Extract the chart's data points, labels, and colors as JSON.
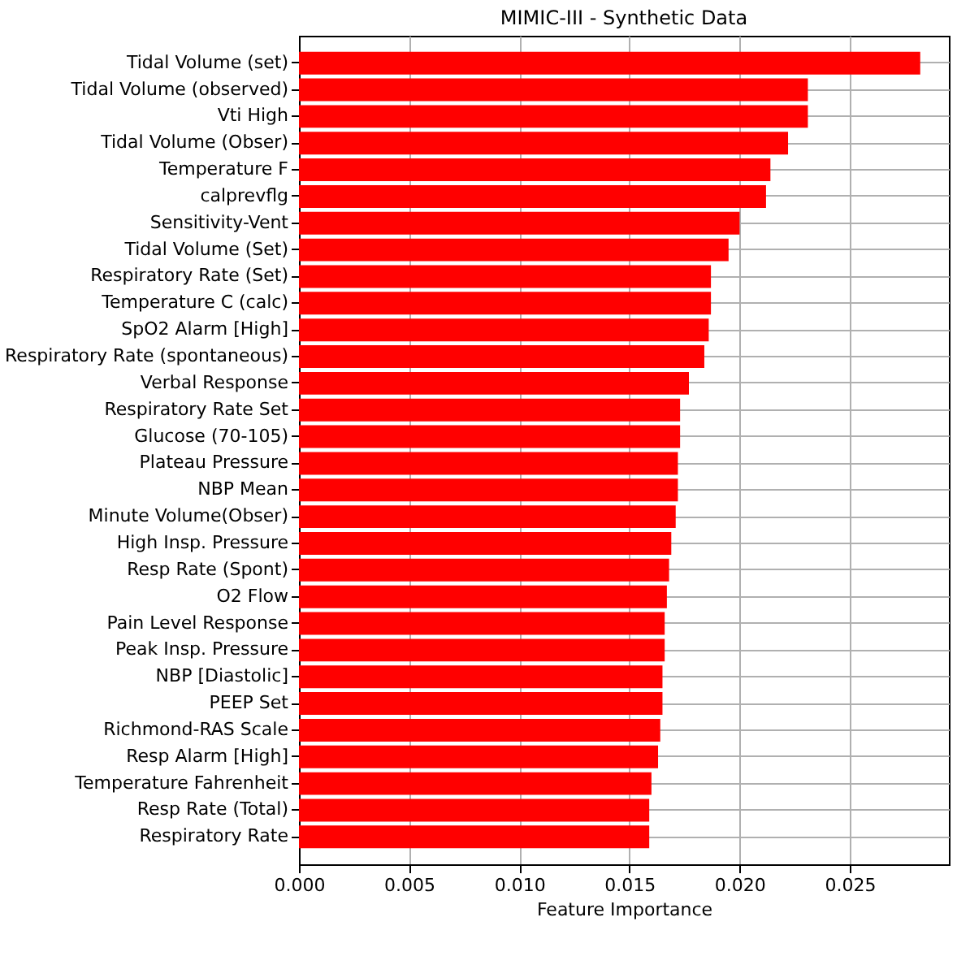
{
  "chart_data": {
    "type": "bar",
    "orientation": "horizontal",
    "title": "MIMIC-III - Synthetic Data",
    "xlabel": "Feature Importance",
    "categories": [
      "Tidal Volume (set)",
      "Tidal Volume (observed)",
      "Vti High",
      "Tidal Volume (Obser)",
      "Temperature F",
      "calprevflg",
      "Sensitivity-Vent",
      "Tidal Volume (Set)",
      "Respiratory Rate (Set)",
      "Temperature C (calc)",
      "SpO2 Alarm [High]",
      "Respiratory Rate (spontaneous)",
      "Verbal Response",
      "Respiratory Rate Set",
      "Glucose (70-105)",
      "Plateau Pressure",
      "NBP Mean",
      "Minute Volume(Obser)",
      "High Insp. Pressure",
      "Resp Rate (Spont)",
      "O2 Flow",
      "Pain Level Response",
      "Peak Insp. Pressure",
      "NBP [Diastolic]",
      "PEEP Set",
      "Richmond-RAS Scale",
      "Resp Alarm [High]",
      "Temperature Fahrenheit",
      "Resp Rate (Total)",
      "Respiratory Rate"
    ],
    "values": [
      0.0282,
      0.0231,
      0.0231,
      0.0222,
      0.0214,
      0.0212,
      0.02,
      0.0195,
      0.0187,
      0.0187,
      0.0186,
      0.0184,
      0.0177,
      0.0173,
      0.0173,
      0.0172,
      0.0172,
      0.0171,
      0.0169,
      0.0168,
      0.0167,
      0.0166,
      0.0166,
      0.0165,
      0.0165,
      0.0164,
      0.0163,
      0.016,
      0.0159,
      0.0159
    ],
    "color": "#ff0000",
    "xlim": [
      0,
      0.0295
    ],
    "xticks": [
      {
        "value": 0,
        "label": "0.000"
      },
      {
        "value": 0.005,
        "label": "0.005"
      },
      {
        "value": 0.01,
        "label": "0.010"
      },
      {
        "value": 0.015,
        "label": "0.015"
      },
      {
        "value": 0.02,
        "label": "0.020"
      },
      {
        "value": 0.025,
        "label": "0.025"
      }
    ],
    "grid": true
  }
}
